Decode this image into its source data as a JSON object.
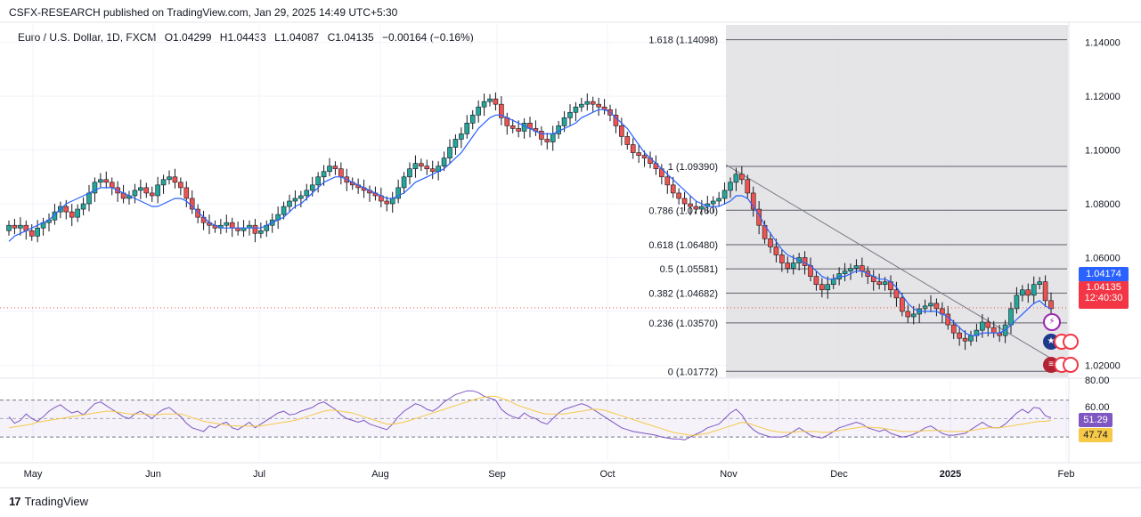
{
  "header": {
    "published": "CSFX-RESEARCH published on TradingView.com, Jan 29, 2025 14:49 UTC+5:30"
  },
  "legend": {
    "symbol": "Euro / U.S. Dollar, 1D, FXCM",
    "open": "O1.04299",
    "high": "H1.04433",
    "low": "L1.04087",
    "close": "C1.04135",
    "change": "−0.00164 (−0.16%)"
  },
  "footer": {
    "brand": "TradingView"
  },
  "price_badges": {
    "ma_value": "1.04174",
    "last_price": "1.04135",
    "countdown": "12:40:30"
  },
  "rsi_badges": {
    "rsi": "51.29",
    "rsi_ma": "47.74"
  },
  "colors": {
    "up": "#26a69a",
    "up_fill": "#26a69a",
    "down": "#ef5350",
    "ma": "#2962ff",
    "rsi": "#7e57c2",
    "rsi_ma": "#f7c948",
    "fib_zone": "#e0e0e3",
    "badge_blue": "#2962ff",
    "badge_red": "#f23645"
  },
  "chart_data": {
    "type": "candlestick",
    "price_axis": {
      "ticks": [
        "1.14000",
        "1.12000",
        "1.10000",
        "1.08000",
        "1.06000",
        "1.02000"
      ],
      "range": [
        1.0155,
        1.1465
      ]
    },
    "time_axis": [
      "May",
      "Jun",
      "Jul",
      "Aug",
      "Sep",
      "Oct",
      "Nov",
      "Dec",
      "2025",
      "Feb"
    ],
    "fibonacci": [
      {
        "label": "1.618 (1.14098)",
        "value": 1.14098
      },
      {
        "label": "1 (1.09390)",
        "value": 1.0939
      },
      {
        "label": "0.786 (1.07760)",
        "value": 1.0776
      },
      {
        "label": "0.618 (1.06480)",
        "value": 1.0648
      },
      {
        "label": "0.5 (1.05581)",
        "value": 1.05581
      },
      {
        "label": "0.382 (1.04682)",
        "value": 1.04682
      },
      {
        "label": "0.236 (1.03570)",
        "value": 1.0357
      },
      {
        "label": "0 (1.01772)",
        "value": 1.01772
      }
    ],
    "price_path": [
      1.072,
      1.071,
      1.072,
      1.07,
      1.068,
      1.071,
      1.073,
      1.074,
      1.077,
      1.079,
      1.077,
      1.075,
      1.078,
      1.08,
      1.084,
      1.088,
      1.089,
      1.088,
      1.086,
      1.084,
      1.082,
      1.083,
      1.085,
      1.086,
      1.084,
      1.083,
      1.087,
      1.089,
      1.09,
      1.088,
      1.086,
      1.082,
      1.078,
      1.075,
      1.073,
      1.072,
      1.071,
      1.072,
      1.073,
      1.071,
      1.07,
      1.071,
      1.072,
      1.069,
      1.07,
      1.072,
      1.074,
      1.076,
      1.079,
      1.081,
      1.082,
      1.083,
      1.085,
      1.087,
      1.09,
      1.092,
      1.094,
      1.093,
      1.09,
      1.088,
      1.087,
      1.086,
      1.085,
      1.084,
      1.083,
      1.081,
      1.08,
      1.082,
      1.086,
      1.09,
      1.093,
      1.095,
      1.094,
      1.093,
      1.092,
      1.094,
      1.097,
      1.101,
      1.104,
      1.106,
      1.11,
      1.113,
      1.116,
      1.118,
      1.119,
      1.117,
      1.112,
      1.109,
      1.108,
      1.107,
      1.11,
      1.108,
      1.107,
      1.104,
      1.103,
      1.106,
      1.109,
      1.112,
      1.114,
      1.116,
      1.117,
      1.118,
      1.117,
      1.116,
      1.115,
      1.113,
      1.109,
      1.105,
      1.102,
      1.099,
      1.098,
      1.097,
      1.095,
      1.093,
      1.09,
      1.087,
      1.084,
      1.082,
      1.08,
      1.079,
      1.078,
      1.079,
      1.08,
      1.081,
      1.082,
      1.085,
      1.088,
      1.091,
      1.089,
      1.084,
      1.078,
      1.072,
      1.067,
      1.064,
      1.061,
      1.058,
      1.056,
      1.058,
      1.06,
      1.057,
      1.053,
      1.05,
      1.048,
      1.05,
      1.052,
      1.054,
      1.055,
      1.056,
      1.057,
      1.055,
      1.053,
      1.051,
      1.05,
      1.051,
      1.048,
      1.045,
      1.04,
      1.038,
      1.039,
      1.041,
      1.042,
      1.043,
      1.041,
      1.039,
      1.035,
      1.032,
      1.03,
      1.029,
      1.031,
      1.033,
      1.036,
      1.034,
      1.032,
      1.031,
      1.035,
      1.041,
      1.046,
      1.048,
      1.046,
      1.05,
      1.051,
      1.044,
      1.041
    ],
    "ma_path": [
      1.066,
      1.068,
      1.069,
      1.07,
      1.071,
      1.072,
      1.073,
      1.074,
      1.076,
      1.078,
      1.08,
      1.081,
      1.082,
      1.083,
      1.084,
      1.085,
      1.086,
      1.086,
      1.086,
      1.085,
      1.084,
      1.083,
      1.082,
      1.081,
      1.08,
      1.079,
      1.079,
      1.08,
      1.081,
      1.082,
      1.082,
      1.081,
      1.079,
      1.077,
      1.075,
      1.073,
      1.072,
      1.071,
      1.071,
      1.071,
      1.071,
      1.071,
      1.071,
      1.071,
      1.071,
      1.072,
      1.073,
      1.074,
      1.075,
      1.077,
      1.079,
      1.08,
      1.082,
      1.084,
      1.086,
      1.088,
      1.089,
      1.09,
      1.09,
      1.089,
      1.088,
      1.087,
      1.086,
      1.085,
      1.084,
      1.083,
      1.082,
      1.082,
      1.083,
      1.084,
      1.086,
      1.088,
      1.089,
      1.09,
      1.091,
      1.092,
      1.093,
      1.095,
      1.097,
      1.099,
      1.102,
      1.105,
      1.108,
      1.11,
      1.112,
      1.113,
      1.113,
      1.112,
      1.111,
      1.11,
      1.109,
      1.108,
      1.107,
      1.106,
      1.106,
      1.106,
      1.107,
      1.108,
      1.109,
      1.11,
      1.112,
      1.113,
      1.114,
      1.115,
      1.115,
      1.114,
      1.112,
      1.11,
      1.108,
      1.105,
      1.102,
      1.099,
      1.097,
      1.095,
      1.093,
      1.091,
      1.089,
      1.087,
      1.085,
      1.083,
      1.081,
      1.08,
      1.079,
      1.079,
      1.079,
      1.08,
      1.081,
      1.083,
      1.083,
      1.082,
      1.079,
      1.076,
      1.072,
      1.069,
      1.066,
      1.063,
      1.061,
      1.06,
      1.059,
      1.058,
      1.057,
      1.055,
      1.053,
      1.052,
      1.052,
      1.053,
      1.053,
      1.054,
      1.055,
      1.055,
      1.054,
      1.053,
      1.052,
      1.052,
      1.051,
      1.049,
      1.046,
      1.043,
      1.041,
      1.04,
      1.04,
      1.04,
      1.04,
      1.039,
      1.038,
      1.036,
      1.034,
      1.032,
      1.031,
      1.031,
      1.032,
      1.032,
      1.032,
      1.032,
      1.033,
      1.035,
      1.037,
      1.039,
      1.041,
      1.043,
      1.044,
      1.042,
      1.041
    ],
    "rsi_axis": {
      "ticks": [
        "80.00",
        "60.00"
      ],
      "range": [
        20,
        80
      ]
    },
    "rsi_path": [
      52,
      45,
      48,
      55,
      50,
      47,
      52,
      58,
      62,
      65,
      60,
      56,
      58,
      54,
      60,
      66,
      68,
      64,
      60,
      56,
      52,
      50,
      55,
      58,
      54,
      50,
      56,
      60,
      62,
      57,
      52,
      45,
      40,
      38,
      36,
      42,
      40,
      44,
      46,
      40,
      38,
      42,
      46,
      40,
      44,
      48,
      52,
      56,
      58,
      54,
      55,
      58,
      60,
      62,
      66,
      68,
      64,
      60,
      54,
      50,
      48,
      46,
      48,
      44,
      42,
      40,
      38,
      44,
      52,
      58,
      62,
      66,
      64,
      60,
      58,
      62,
      68,
      72,
      76,
      78,
      80,
      80,
      78,
      74,
      72,
      70,
      60,
      55,
      52,
      50,
      56,
      52,
      50,
      46,
      44,
      50,
      56,
      60,
      62,
      64,
      66,
      64,
      60,
      56,
      52,
      48,
      44,
      40,
      38,
      36,
      35,
      34,
      33,
      32,
      30,
      29,
      28,
      28,
      27,
      30,
      33,
      36,
      40,
      42,
      44,
      50,
      56,
      60,
      54,
      44,
      38,
      34,
      32,
      30,
      30,
      30,
      32,
      36,
      40,
      36,
      32,
      30,
      29,
      32,
      36,
      40,
      42,
      44,
      46,
      44,
      40,
      38,
      36,
      38,
      34,
      32,
      30,
      31,
      33,
      36,
      40,
      42,
      38,
      34,
      32,
      32,
      33,
      34,
      38,
      42,
      46,
      42,
      40,
      40,
      44,
      50,
      56,
      60,
      56,
      62,
      61,
      53,
      51
    ],
    "rsi_ma_path": [
      40,
      41,
      42,
      43,
      44,
      46,
      47,
      48,
      49,
      50,
      51,
      52,
      53,
      54,
      55,
      56,
      57,
      58,
      58,
      57,
      56,
      55,
      55,
      55,
      55,
      54,
      54,
      55,
      55,
      55,
      55,
      53,
      51,
      49,
      47,
      46,
      45,
      44,
      43,
      42,
      42,
      42,
      42,
      42,
      42,
      43,
      44,
      45,
      46,
      47,
      48,
      50,
      52,
      54,
      56,
      58,
      59,
      59,
      58,
      57,
      56,
      54,
      52,
      50,
      48,
      46,
      44,
      44,
      45,
      46,
      48,
      50,
      52,
      54,
      56,
      58,
      60,
      62,
      64,
      66,
      68,
      70,
      72,
      73,
      74,
      74,
      72,
      70,
      67,
      64,
      62,
      60,
      58,
      56,
      55,
      55,
      55,
      55,
      56,
      57,
      58,
      59,
      60,
      60,
      59,
      57,
      55,
      53,
      51,
      49,
      47,
      45,
      43,
      41,
      39,
      37,
      35,
      34,
      33,
      32,
      32,
      33,
      34,
      36,
      38,
      40,
      42,
      44,
      46,
      45,
      43,
      41,
      39,
      37,
      36,
      35,
      35,
      35,
      36,
      36,
      36,
      36,
      35,
      35,
      36,
      37,
      38,
      39,
      40,
      41,
      41,
      40,
      40,
      39,
      38,
      37,
      36,
      36,
      36,
      36,
      37,
      37,
      37,
      37,
      36,
      36,
      36,
      36,
      37,
      38,
      39,
      40,
      40,
      40,
      41,
      42,
      43,
      44,
      45,
      46,
      47,
      47,
      48
    ]
  }
}
